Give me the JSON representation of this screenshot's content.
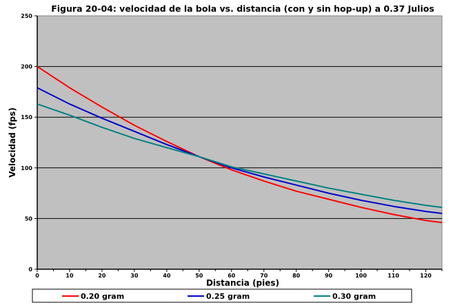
{
  "chart_data": {
    "type": "line",
    "title": "Figura 20-04: velocidad de la bola vs. distancia (con y sin hop-up) a 0.37 Julios",
    "xlabel": "Distancia (pies)",
    "ylabel": "Velocidad (fps)",
    "xlim": [
      0,
      125
    ],
    "ylim": [
      0,
      250
    ],
    "xticks": [
      0,
      10,
      20,
      30,
      40,
      50,
      60,
      70,
      80,
      90,
      100,
      110,
      120
    ],
    "yticks": [
      0,
      50,
      100,
      150,
      200,
      250
    ],
    "grid": "horizontal",
    "legend_position": "bottom",
    "plot_background": "#c0c0c0",
    "series": [
      {
        "name": "0.20 gram",
        "color": "#ff0000",
        "x": [
          0,
          10,
          20,
          30,
          40,
          50,
          60,
          70,
          80,
          90,
          100,
          110,
          120,
          125
        ],
        "y": [
          200,
          179,
          160,
          142,
          126,
          111,
          98,
          87,
          77,
          69,
          61,
          54,
          48,
          46
        ]
      },
      {
        "name": "0.25 gram",
        "color": "#0000cc",
        "x": [
          0,
          10,
          20,
          30,
          40,
          50,
          60,
          70,
          80,
          90,
          100,
          110,
          120,
          125
        ],
        "y": [
          179,
          163,
          149,
          136,
          123,
          111,
          100,
          91,
          83,
          75,
          68,
          62,
          57,
          55
        ]
      },
      {
        "name": "0.30 gram",
        "color": "#008080",
        "x": [
          0,
          10,
          20,
          30,
          40,
          50,
          60,
          70,
          80,
          90,
          100,
          110,
          120,
          125
        ],
        "y": [
          163,
          152,
          140,
          129,
          120,
          111,
          101,
          94,
          87,
          80,
          74,
          68,
          63,
          61
        ]
      }
    ]
  }
}
